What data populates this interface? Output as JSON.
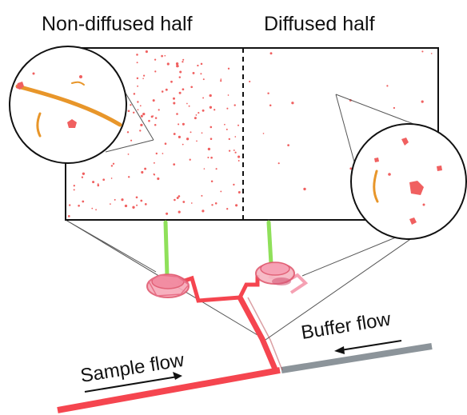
{
  "labels": {
    "non_diffused_half": "Non-diffused half",
    "diffused_half": "Diffused half",
    "sample_flow": "Sample flow",
    "buffer_flow": "Buffer flow"
  },
  "colors": {
    "particle": "#f06060",
    "fiber": "#e8962a",
    "sample_channel": "#f5454f",
    "buffer_channel": "#8c949a",
    "laser_beam": "#8fe05a",
    "chamber_pink": "#f28aa0",
    "connector_lines": "#444444",
    "frame": "#111111"
  },
  "icons": {
    "left_zoom": "magnified-particles-circle",
    "right_zoom": "magnified-particles-circle",
    "sample_arrow": "arrow-right-icon",
    "buffer_arrow": "arrow-left-icon"
  }
}
